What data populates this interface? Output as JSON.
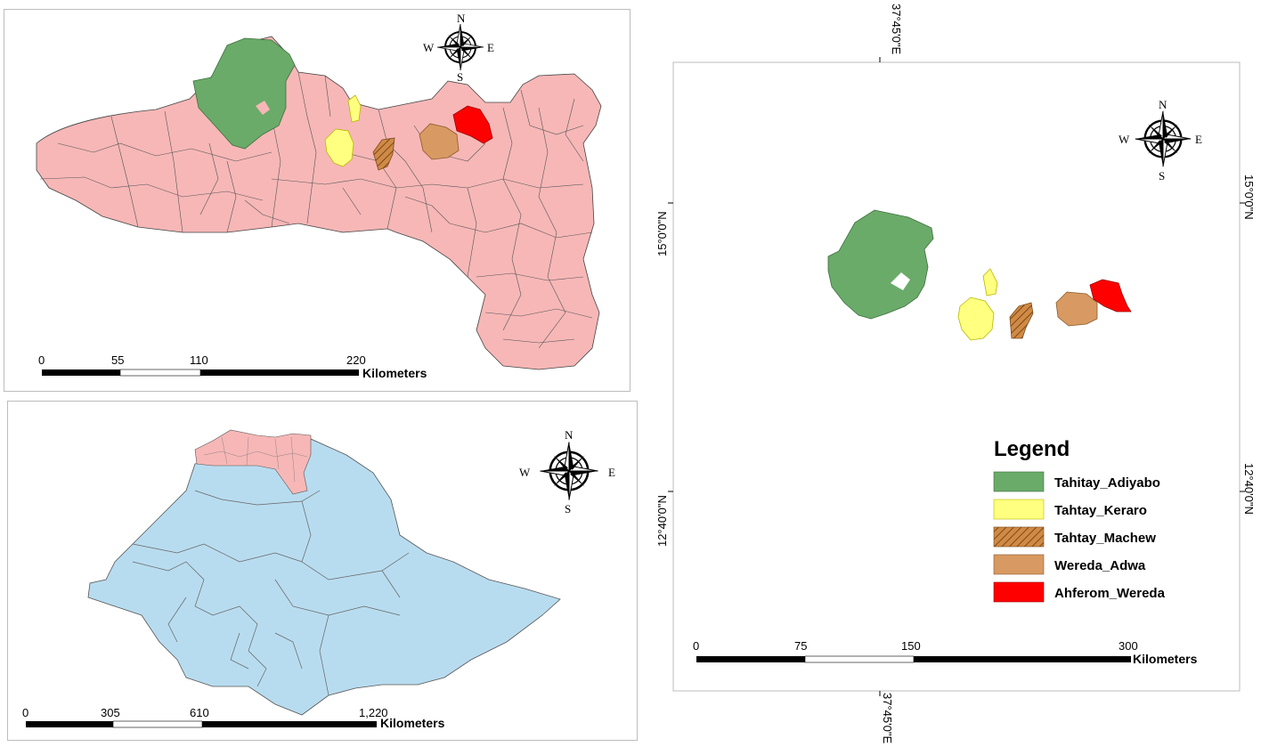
{
  "maps": {
    "tigray": {
      "scale": {
        "ticks": [
          "0",
          "55",
          "110",
          "220"
        ],
        "unit": "Kilometers"
      },
      "compass": {
        "n": "N",
        "e": "E",
        "s": "S",
        "w": "W"
      }
    },
    "ethiopia": {
      "scale": {
        "ticks": [
          "0",
          "305",
          "610",
          "1,220"
        ],
        "unit": "Kilometers"
      },
      "compass": {
        "n": "N",
        "e": "E",
        "s": "S",
        "w": "W"
      }
    },
    "study_area": {
      "scale": {
        "ticks": [
          "0",
          "75",
          "150",
          "300"
        ],
        "unit": "Kilometers"
      },
      "compass": {
        "n": "N",
        "e": "E",
        "s": "S",
        "w": "W"
      },
      "coords": {
        "top": "37°45'0\"E",
        "bottom": "37°45'0\"E",
        "left_upper": "15°0'0\"N",
        "left_lower": "12°40'0\"N",
        "right_upper": "15°0'0\"N",
        "right_lower": "12°40'0\"N"
      }
    }
  },
  "legend": {
    "title": "Legend",
    "items": [
      {
        "label": "Tahitay_Adiyabo",
        "color": "#6aab6a"
      },
      {
        "label": "Tahtay_Keraro",
        "color": "#ffff80"
      },
      {
        "label": "Tahtay_Machew",
        "color": "#c98a4a"
      },
      {
        "label": "Wereda_Adwa",
        "color": "#d89a62"
      },
      {
        "label": "Ahferom_Wereda",
        "color": "#ff0000"
      }
    ]
  },
  "colors": {
    "region": "#f7b7b7",
    "ethiopia": "#b8dcef",
    "outline": "#444444"
  }
}
